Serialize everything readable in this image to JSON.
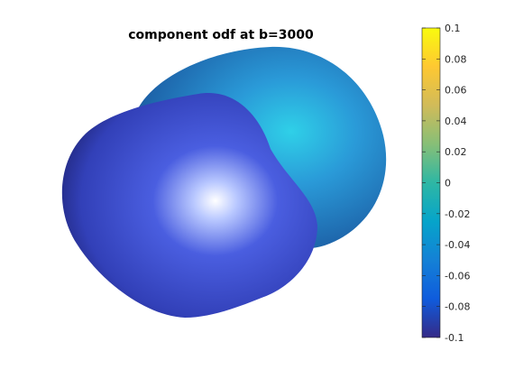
{
  "chart_data": {
    "type": "surface",
    "title": "component odf at b=3000",
    "colorbar": {
      "colormap": "parula",
      "range": [
        -0.1,
        0.1
      ],
      "ticks": [
        0.1,
        0.08,
        0.06,
        0.04,
        0.02,
        0,
        -0.02,
        -0.04,
        -0.06,
        -0.08,
        -0.1
      ],
      "tick_labels": [
        "0.1",
        "0.08",
        "0.06",
        "0.04",
        "0.02",
        "0",
        "-0.02",
        "-0.04",
        "-0.06",
        "-0.08",
        "-0.1"
      ],
      "colors": [
        "#352a87",
        "#0f5cdd",
        "#1481d6",
        "#06a4ca",
        "#2eb7a4",
        "#87bf77",
        "#d1bb59",
        "#fec832",
        "#f9fb0e"
      ]
    },
    "surface": {
      "lobes": [
        {
          "name": "front",
          "approx_value": -0.085,
          "color": "#3b3fc8",
          "shadow": "#1a1d6e"
        },
        {
          "name": "back",
          "approx_value": -0.045,
          "color": "#2a80cf",
          "shadow": "#0f3a6a"
        }
      ],
      "lighting": "specular highlight"
    }
  }
}
